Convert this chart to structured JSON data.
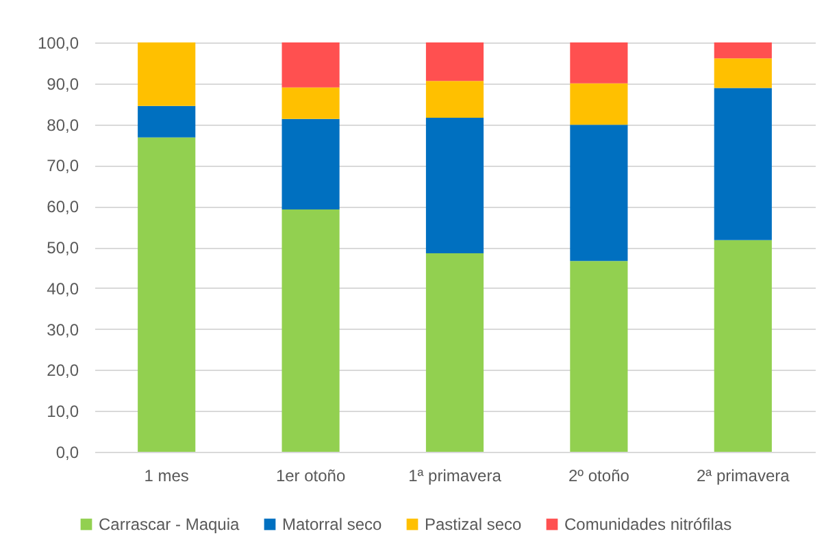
{
  "chart_data": {
    "type": "bar",
    "stacked": true,
    "categories": [
      "1 mes",
      "1er otoño",
      "1ª primavera",
      "2º otoño",
      "2ª primavera"
    ],
    "series": [
      {
        "name": "Carrascar - Maquia",
        "color": "#92d050",
        "values": [
          76.8,
          59.2,
          48.5,
          46.6,
          51.7
        ]
      },
      {
        "name": "Matorral seco",
        "color": "#0070c0",
        "values": [
          7.7,
          22.1,
          33.1,
          33.3,
          37.2
        ]
      },
      {
        "name": "Pastizal seco",
        "color": "#ffc000",
        "values": [
          15.5,
          7.7,
          9.0,
          10.1,
          7.2
        ]
      },
      {
        "name": "Comunidades nitrófilas",
        "color": "#ff5050",
        "values": [
          null,
          11.0,
          9.4,
          10.0,
          3.9
        ]
      }
    ],
    "ylim": [
      0,
      100
    ],
    "yticks": [
      {
        "value": 0,
        "label": "0,0"
      },
      {
        "value": 10,
        "label": "10,0"
      },
      {
        "value": 20,
        "label": "20,0"
      },
      {
        "value": 30,
        "label": "30,0"
      },
      {
        "value": 40,
        "label": "40,0"
      },
      {
        "value": 50,
        "label": "50,0"
      },
      {
        "value": 60,
        "label": "60,0"
      },
      {
        "value": 70,
        "label": "70,0"
      },
      {
        "value": 80,
        "label": "80,0"
      },
      {
        "value": 90,
        "label": "90,0"
      },
      {
        "value": 100,
        "label": "100,0"
      }
    ],
    "grid": "y",
    "legend": "bottom"
  }
}
